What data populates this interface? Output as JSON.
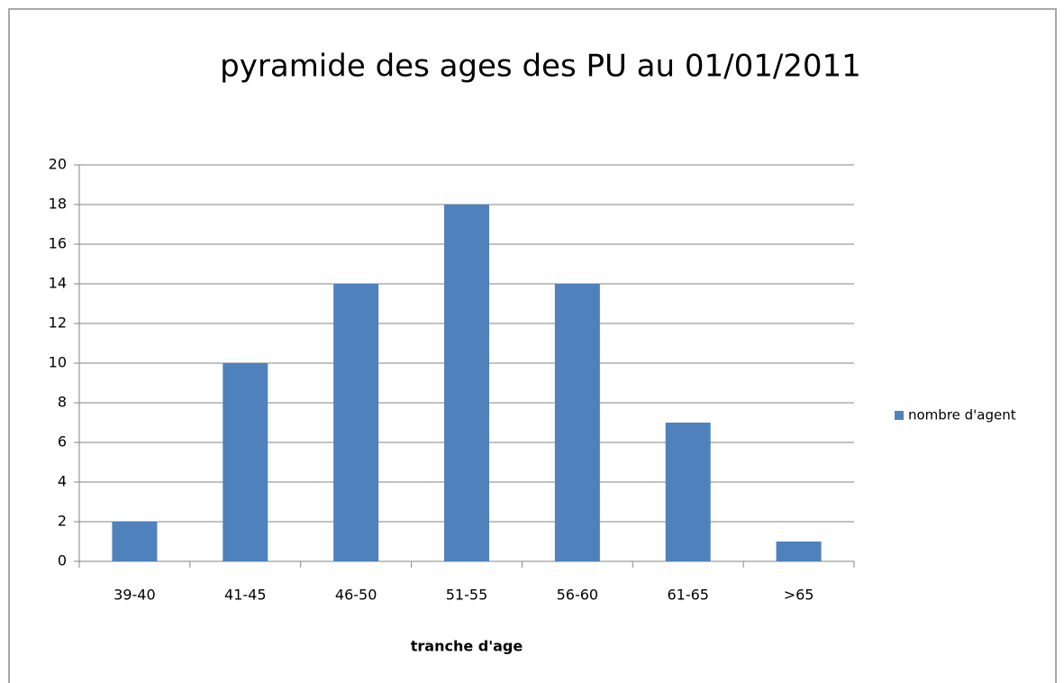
{
  "chart_data": {
    "type": "bar",
    "title": "pyramide des ages des PU au 01/01/2011",
    "x_label": "tranche d'age",
    "categories": [
      "39-40",
      "41-45",
      "46-50",
      "51-55",
      "56-60",
      "61-65",
      ">65"
    ],
    "series": [
      {
        "name": "nombre d'agent",
        "color": "#4f81bd",
        "values": [
          2,
          10,
          14,
          18,
          14,
          7,
          1
        ]
      }
    ],
    "ylim": [
      0,
      20
    ],
    "yticks": [
      0,
      2,
      4,
      6,
      8,
      10,
      12,
      14,
      16,
      18,
      20
    ],
    "grid": true,
    "legend": "right"
  }
}
